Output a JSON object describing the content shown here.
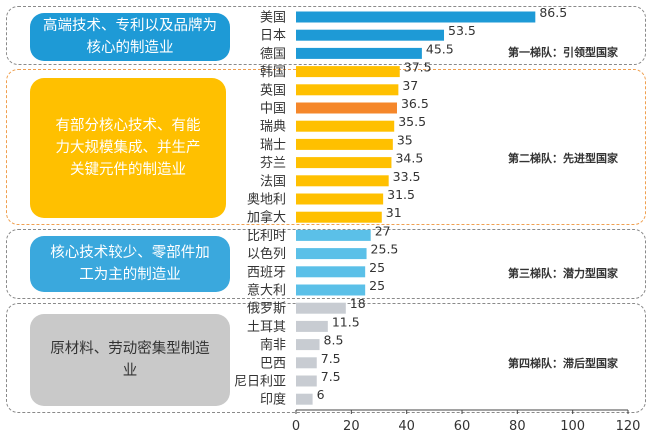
{
  "chart_data": {
    "type": "bar",
    "orientation": "horizontal",
    "categories": [
      "美国",
      "日本",
      "德国",
      "韩国",
      "英国",
      "中国",
      "瑞典",
      "瑞士",
      "芬兰",
      "法国",
      "奥地利",
      "加拿大",
      "比利时",
      "以色列",
      "西班牙",
      "意大利",
      "俄罗斯",
      "土耳其",
      "南非",
      "巴西",
      "尼日利亚",
      "印度"
    ],
    "values": [
      86.5,
      53.5,
      45.5,
      37.5,
      37,
      36.5,
      35.5,
      35,
      34.5,
      33.5,
      31.5,
      31,
      27,
      25.5,
      25,
      25,
      18,
      11.5,
      8.5,
      7.5,
      7.5,
      6
    ],
    "value_labels": [
      "86.5",
      "53.5",
      "45.5",
      "37.5",
      "37",
      "36.5",
      "35.5",
      "35",
      "34.5",
      "33.5",
      "31.5",
      "31",
      "27",
      "25.5",
      "25",
      "25",
      "18",
      "11.5",
      "8.5",
      "7.5",
      "7.5",
      "6"
    ],
    "bar_colors": [
      "#1e9ad6",
      "#1e9ad6",
      "#1e9ad6",
      "#ffc000",
      "#ffc000",
      "#f5872a",
      "#ffc000",
      "#ffc000",
      "#ffc000",
      "#ffc000",
      "#ffc000",
      "#ffc000",
      "#5bc0e8",
      "#5bc0e8",
      "#5bc0e8",
      "#5bc0e8",
      "#c8ccd2",
      "#c8ccd2",
      "#c8ccd2",
      "#c8ccd2",
      "#c8ccd2",
      "#c8ccd2"
    ],
    "xlim": [
      0,
      120
    ],
    "xticks": [
      "0",
      "20",
      "40",
      "60",
      "80",
      "100",
      "120"
    ],
    "grid": false,
    "legend": "none"
  },
  "groups": [
    {
      "description": "高端技术、专利以及品牌为核心的制造业",
      "tier_label": "第一梯队：引领型国家",
      "color": "#1e9ad6"
    },
    {
      "description": "有部分核心技术、有能力大规模集成、并生产关键元件的制造业",
      "tier_label": "第二梯队：先进型国家",
      "color": "#ffc000"
    },
    {
      "description": "核心技术较少、零部件加工为主的制造业",
      "tier_label": "第三梯队：潜力型国家",
      "color": "#3aa8dd"
    },
    {
      "description": "原材料、劳动密集型制造业",
      "tier_label": "第四梯队：滞后型国家",
      "color": "#c9c9c9"
    }
  ]
}
